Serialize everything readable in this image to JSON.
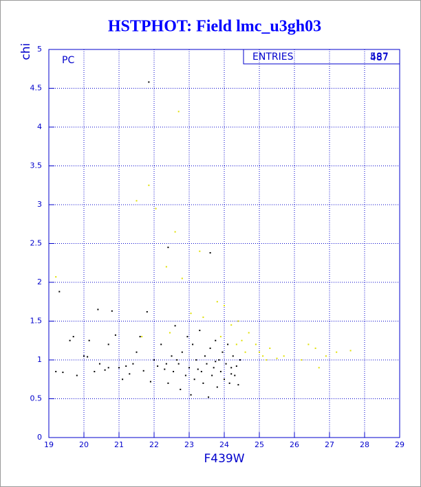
{
  "chart_data": {
    "type": "scatter",
    "title": "HSTPHOT: Field lmc_u3gh03",
    "panel_label": "PC",
    "x_label": "F439W",
    "y_label": "chi",
    "stats": {
      "label": "ENTRIES",
      "entries": [
        587,
        487
      ]
    },
    "xlim": [
      19,
      29
    ],
    "xticks": [
      19,
      20,
      21,
      22,
      23,
      24,
      25,
      26,
      27,
      28,
      29
    ],
    "ylim": [
      0,
      5
    ],
    "yticks": [
      0,
      0.5,
      1,
      1.5,
      2,
      2.5,
      3,
      3.5,
      4,
      4.5,
      5
    ],
    "grid": true,
    "series": [
      {
        "color": "#000000",
        "x": [
          19.3,
          19.2,
          19.4,
          19.6,
          19.7,
          19.8,
          20.0,
          20.1,
          20.15,
          20.3,
          20.4,
          20.45,
          20.6,
          20.7,
          20.8,
          20.7,
          20.9,
          21.0,
          21.1,
          21.2,
          21.3,
          21.4,
          21.5,
          21.6,
          21.7,
          21.8,
          21.85,
          21.9,
          22.0,
          22.1,
          22.2,
          22.3,
          22.4,
          22.4,
          22.5,
          22.55,
          22.6,
          22.7,
          22.75,
          22.8,
          22.9,
          22.95,
          23.0,
          23.05,
          23.1,
          23.15,
          23.2,
          23.3,
          23.35,
          23.4,
          23.45,
          23.5,
          23.55,
          23.6,
          23.6,
          23.65,
          23.7,
          23.75,
          23.8,
          23.85,
          23.9,
          23.95,
          24.0,
          24.05,
          24.1,
          24.15,
          24.2,
          24.25,
          24.3,
          24.35,
          24.4,
          24.45,
          22.65,
          23.25,
          22.35,
          23.75,
          24.2
        ],
        "y": [
          1.88,
          0.85,
          0.84,
          1.25,
          1.3,
          0.8,
          1.05,
          1.04,
          1.25,
          0.85,
          1.65,
          0.95,
          0.87,
          0.9,
          1.63,
          1.2,
          1.32,
          0.9,
          0.75,
          0.92,
          0.82,
          0.95,
          1.1,
          1.3,
          0.86,
          1.62,
          4.58,
          0.72,
          1.0,
          0.92,
          1.2,
          0.88,
          2.45,
          0.7,
          1.05,
          0.85,
          1.44,
          0.95,
          0.62,
          1.1,
          0.8,
          1.3,
          0.9,
          0.55,
          1.2,
          0.75,
          1.0,
          1.38,
          0.85,
          0.7,
          1.05,
          0.95,
          0.52,
          2.38,
          1.15,
          0.8,
          0.9,
          1.25,
          0.65,
          1.0,
          0.85,
          1.1,
          0.75,
          0.95,
          1.2,
          0.7,
          0.9,
          1.05,
          0.8,
          0.92,
          0.68,
          1.0,
          1.0,
          0.88,
          0.95,
          0.98,
          0.82
        ]
      },
      {
        "color": "#e0e000",
        "x": [
          19.2,
          21.5,
          21.85,
          22.05,
          22.7,
          22.6,
          22.35,
          22.8,
          23.3,
          23.05,
          23.4,
          23.8,
          24.0,
          24.2,
          24.4,
          24.5,
          24.6,
          24.7,
          24.9,
          25.0,
          25.1,
          25.2,
          25.3,
          25.5,
          25.7,
          26.2,
          26.4,
          26.6,
          26.7,
          26.9,
          27.2,
          27.6,
          22.45,
          21.65,
          23.9,
          24.35
        ],
        "y": [
          2.07,
          3.05,
          3.25,
          2.95,
          4.2,
          2.65,
          2.2,
          2.05,
          2.4,
          1.6,
          1.55,
          1.75,
          1.7,
          1.45,
          1.5,
          1.25,
          1.1,
          1.35,
          1.2,
          1.1,
          1.05,
          1.0,
          1.15,
          1.02,
          1.05,
          1.0,
          1.2,
          1.15,
          0.9,
          1.05,
          1.1,
          1.12,
          1.35,
          1.3,
          1.3,
          1.2
        ]
      }
    ]
  }
}
